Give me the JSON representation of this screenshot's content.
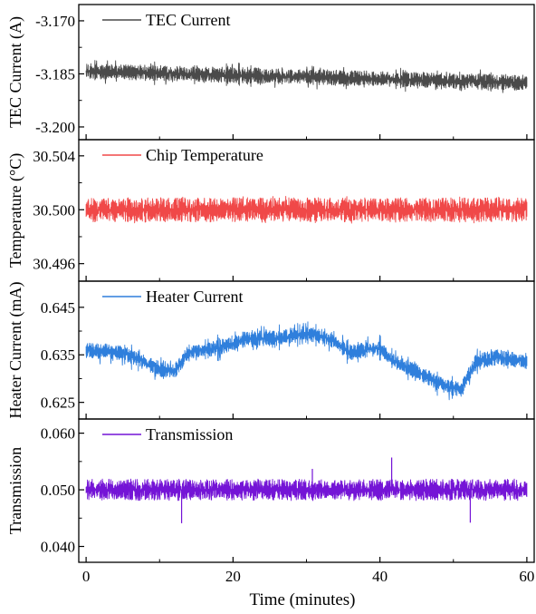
{
  "chart_data": {
    "type": "line",
    "xlabel": "Time (minutes)",
    "xlim": [
      -1,
      61
    ],
    "xticks": [
      0,
      20,
      40,
      60
    ],
    "grid": false,
    "legend_placement": "top-left",
    "panels": [
      {
        "series_name": "TEC Current",
        "ylabel": "TEC Current (A)",
        "color": "#4a4a4a",
        "ylim": [
          -3.2036,
          -3.1654
        ],
        "yticks": [
          -3.17,
          -3.185,
          -3.2
        ],
        "ytick_labels": [
          "-3.170",
          "-3.185",
          "-3.200"
        ],
        "trend": [
          {
            "x": 0,
            "y": -3.1842
          },
          {
            "x": 60,
            "y": -3.1875
          }
        ],
        "band_halfwidth": 0.0022,
        "spike_amplitude": 0.0034
      },
      {
        "series_name": "Chip Temperature",
        "ylabel": "Temperature (°C)",
        "color": "#f04848",
        "ylim": [
          30.4947,
          30.5052
        ],
        "yticks": [
          30.504,
          30.5,
          30.496
        ],
        "ytick_labels": [
          "30.504",
          "30.500",
          "30.496"
        ],
        "trend": [
          {
            "x": 0,
            "y": 30.5
          },
          {
            "x": 60,
            "y": 30.5
          }
        ],
        "band_halfwidth": 0.0009,
        "spike_amplitude": 0.001
      },
      {
        "series_name": "Heater Current",
        "ylabel": "Heater Current (mA)",
        "color": "#2f7fdc",
        "ylim": [
          0.6215,
          0.6505
        ],
        "yticks": [
          0.645,
          0.635,
          0.625
        ],
        "ytick_labels": [
          "0.645",
          "0.635",
          "0.625"
        ],
        "trend": [
          {
            "x": 0,
            "y": 0.636
          },
          {
            "x": 5,
            "y": 0.6355
          },
          {
            "x": 10,
            "y": 0.632
          },
          {
            "x": 12,
            "y": 0.6315
          },
          {
            "x": 14,
            "y": 0.6355
          },
          {
            "x": 18,
            "y": 0.6365
          },
          {
            "x": 22,
            "y": 0.6385
          },
          {
            "x": 26,
            "y": 0.6385
          },
          {
            "x": 30,
            "y": 0.6395
          },
          {
            "x": 33,
            "y": 0.6385
          },
          {
            "x": 36,
            "y": 0.6355
          },
          {
            "x": 40,
            "y": 0.6365
          },
          {
            "x": 42,
            "y": 0.6335
          },
          {
            "x": 45,
            "y": 0.6315
          },
          {
            "x": 48,
            "y": 0.629
          },
          {
            "x": 51,
            "y": 0.6275
          },
          {
            "x": 53,
            "y": 0.6335
          },
          {
            "x": 56,
            "y": 0.6345
          },
          {
            "x": 60,
            "y": 0.6335
          }
        ],
        "band_halfwidth": 0.0016,
        "spike_amplitude": 0.0028
      },
      {
        "series_name": "Transmission",
        "ylabel": "Transmission",
        "color": "#7414d6",
        "ylim": [
          0.0372,
          0.0625
        ],
        "yticks": [
          0.06,
          0.05,
          0.04
        ],
        "ytick_labels": [
          "0.060",
          "0.050",
          "0.040"
        ],
        "trend": [
          {
            "x": 0,
            "y": 0.05
          },
          {
            "x": 60,
            "y": 0.05
          }
        ],
        "band_halfwidth": 0.0019,
        "spike_amplitude": 0.0012,
        "outliers": [
          {
            "x": 13,
            "y": 0.0441
          },
          {
            "x": 41.6,
            "y": 0.0557
          },
          {
            "x": 52.3,
            "y": 0.0442
          },
          {
            "x": 30.8,
            "y": 0.0537
          }
        ]
      }
    ]
  }
}
